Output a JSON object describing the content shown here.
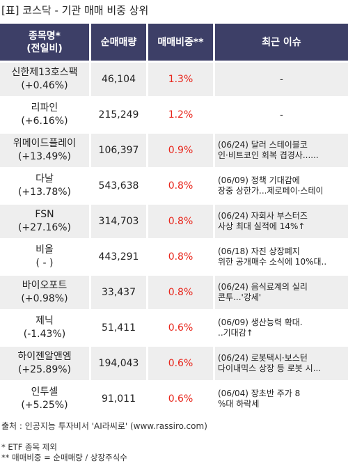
{
  "title": "[표] 코스닥 - 기관 매매 비중 상위",
  "headers": {
    "name_line1": "종목명*",
    "name_line2": "(전일비)",
    "volume": "순매매량",
    "ratio": "매매비중**",
    "issue": "최근 이슈"
  },
  "rows": [
    {
      "name": "신한제13호스팩",
      "change": "(+0.46%)",
      "volume": "46,104",
      "ratio": "1.3%",
      "issue": "-"
    },
    {
      "name": "리파인",
      "change": "(+6.16%)",
      "volume": "215,249",
      "ratio": "1.2%",
      "issue": "-"
    },
    {
      "name": "위메이드플레이",
      "change": "(+13.49%)",
      "volume": "106,397",
      "ratio": "0.9%",
      "issue": "(06/24) 달러 스테이블코\n인·비트코인 회복 겹경사......"
    },
    {
      "name": "다날",
      "change": "(+13.78%)",
      "volume": "543,638",
      "ratio": "0.8%",
      "issue": "(06/09) 정책 기대감에\n장중 상한가...제로페이·스테이"
    },
    {
      "name": "FSN",
      "change": "(+27.16%)",
      "volume": "314,703",
      "ratio": "0.8%",
      "issue": "(06/24) 자회사 부스터즈\n 사상 최대 실적에 14%↑"
    },
    {
      "name": "비올",
      "change": "( - )",
      "volume": "443,291",
      "ratio": "0.8%",
      "issue": "(06/18) 자진 상장폐지\n위한 공개매수 소식에 10%대.."
    },
    {
      "name": "바이오포트",
      "change": "(+0.98%)",
      "volume": "33,437",
      "ratio": "0.8%",
      "issue": "(06/24) 음식료계의 실리\n콘투...'강세'"
    },
    {
      "name": "제닉",
      "change": "(-1.43%)",
      "volume": "51,411",
      "ratio": "0.6%",
      "issue": "(06/09) 생산능력 확대.\n..기대감↑"
    },
    {
      "name": "하이젠알앤엠",
      "change": "(+25.89%)",
      "volume": "194,043",
      "ratio": "0.6%",
      "issue": "(06/24) 로봇택시·보스턴\n 다이내믹스 상장 등 로봇 시..."
    },
    {
      "name": "인투셀",
      "change": "(+5.25%)",
      "volume": "91,011",
      "ratio": "0.6%",
      "issue": "(06/04) 장초반 주가 8\n%대 하락세"
    }
  ],
  "source": "출처 : 인공지능 투자비서 'AI라씨로' (www.rassiro.com)",
  "notes": [
    "* ETF 종목 제외",
    "** 매매비중 = 순매매량 / 상장주식수"
  ]
}
